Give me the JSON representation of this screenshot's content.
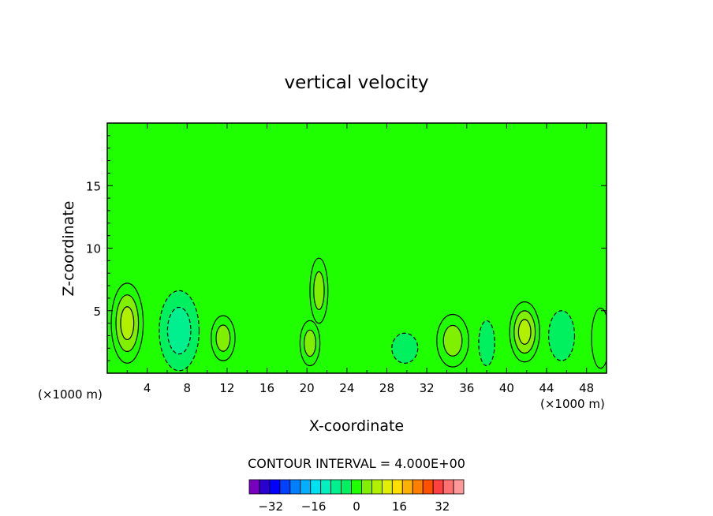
{
  "chart_data": {
    "type": "heatmap",
    "subtype": "filled-contour",
    "title": "vertical velocity",
    "xlabel": "X-coordinate",
    "ylabel": "Z-coordinate",
    "x_unit_left": "(×1000 m)",
    "x_unit_right": "(×1000 m)",
    "xlim": [
      0,
      50
    ],
    "ylim": [
      0,
      20
    ],
    "x_ticks": [
      4,
      8,
      12,
      16,
      20,
      24,
      28,
      32,
      36,
      40,
      44,
      48
    ],
    "y_ticks": [
      5,
      10,
      15
    ],
    "contour_interval_label": "CONTOUR INTERVAL = 4.000E+00",
    "contour_interval": 4,
    "colorbar": {
      "levels": [
        -40,
        -36,
        -32,
        -28,
        -24,
        -20,
        -16,
        -12,
        -8,
        -4,
        0,
        4,
        8,
        12,
        16,
        20,
        24,
        28,
        32,
        36,
        40
      ],
      "tick_labels": [
        "-32",
        "-16",
        "0",
        "16",
        "32"
      ],
      "tick_values": [
        -32,
        -16,
        0,
        16,
        32
      ],
      "colors": [
        "#7a00c0",
        "#2a00d0",
        "#0000ff",
        "#0040ff",
        "#0080ff",
        "#00b0ff",
        "#00e0f0",
        "#00f0c0",
        "#00f090",
        "#00f060",
        "#20ff00",
        "#80f000",
        "#b0f000",
        "#e0f000",
        "#ffe000",
        "#ffb000",
        "#ff8000",
        "#ff5000",
        "#ff4040",
        "#ff7070",
        "#ff9999"
      ]
    },
    "background_color": "#20ff00",
    "features": [
      {
        "x": 2.0,
        "z": 4.0,
        "rx": 1.6,
        "rz": 3.2,
        "value": 12
      },
      {
        "x": 7.2,
        "z": 3.4,
        "rx": 2.0,
        "rz": 3.2,
        "value": -8
      },
      {
        "x": 11.6,
        "z": 2.8,
        "rx": 1.2,
        "rz": 1.8,
        "value": 8
      },
      {
        "x": 20.3,
        "z": 2.4,
        "rx": 1.0,
        "rz": 1.8,
        "value": 8
      },
      {
        "x": 21.2,
        "z": 6.6,
        "rx": 0.9,
        "rz": 2.6,
        "value": 8
      },
      {
        "x": 29.8,
        "z": 2.0,
        "rx": 1.3,
        "rz": 1.2,
        "value": -4
      },
      {
        "x": 34.6,
        "z": 2.6,
        "rx": 1.6,
        "rz": 2.1,
        "value": 8
      },
      {
        "x": 38.0,
        "z": 2.4,
        "rx": 0.8,
        "rz": 1.8,
        "value": -4
      },
      {
        "x": 41.8,
        "z": 3.3,
        "rx": 1.5,
        "rz": 2.4,
        "value": 12
      },
      {
        "x": 45.5,
        "z": 3.0,
        "rx": 1.3,
        "rz": 2.0,
        "value": -4
      },
      {
        "x": 49.4,
        "z": 2.8,
        "rx": 0.9,
        "rz": 2.4,
        "value": 4
      }
    ]
  }
}
